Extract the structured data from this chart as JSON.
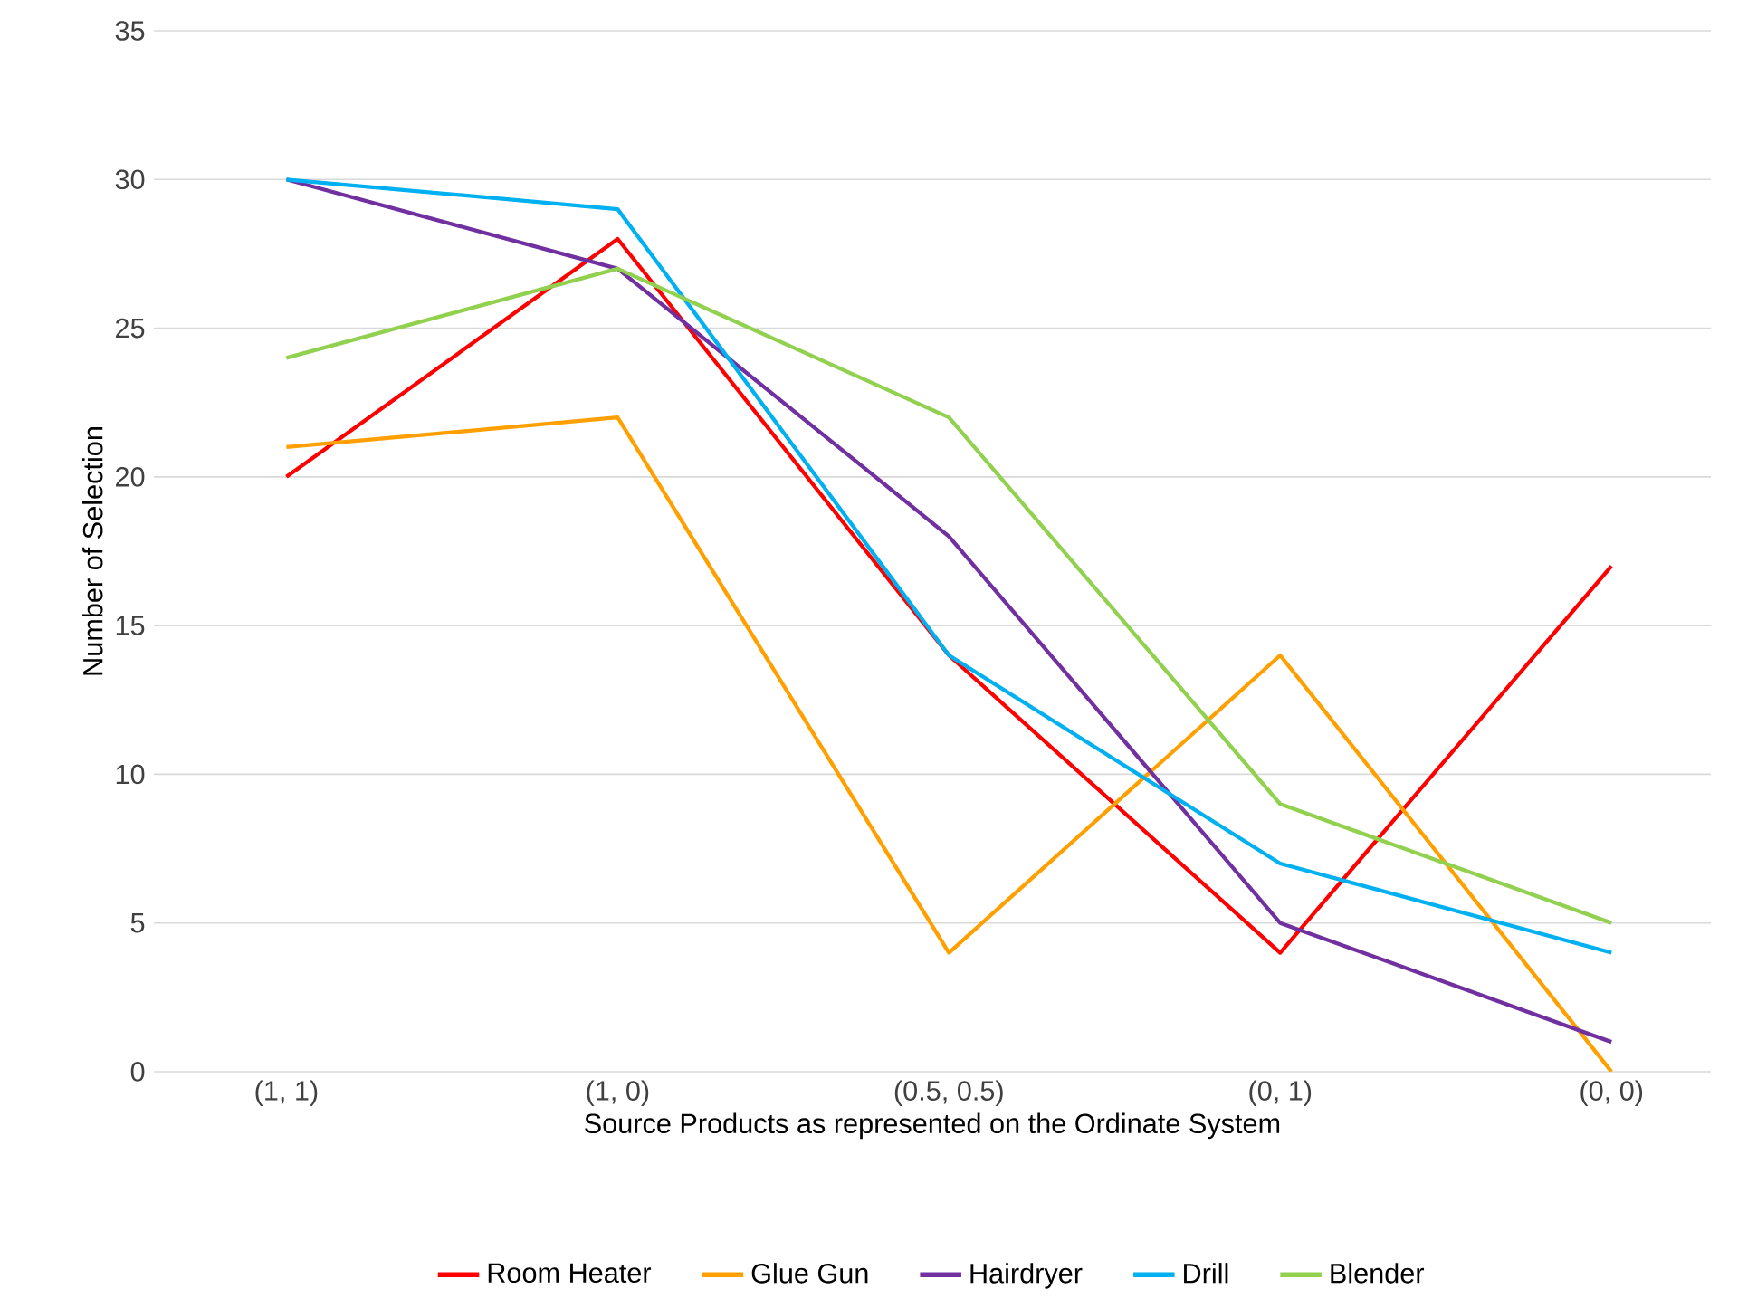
{
  "chart_data": {
    "type": "line",
    "xlabel": "Source Products as represented on the Ordinate System",
    "ylabel": "Number of Selection",
    "categories": [
      "(1, 1)",
      "(1, 0)",
      "(0.5, 0.5)",
      "(0, 1)",
      "(0, 0)"
    ],
    "series": [
      {
        "name": "Room Heater",
        "color": "#ff0000",
        "values": [
          20,
          28,
          14,
          4,
          17
        ]
      },
      {
        "name": "Glue Gun",
        "color": "#ffa000",
        "values": [
          21,
          22,
          4,
          14,
          0
        ]
      },
      {
        "name": "Hairdryer",
        "color": "#7030a0",
        "values": [
          30,
          27,
          18,
          5,
          1
        ]
      },
      {
        "name": "Drill",
        "color": "#00b0f0",
        "values": [
          30,
          29,
          14,
          7,
          4
        ]
      },
      {
        "name": "Blender",
        "color": "#92d050",
        "values": [
          24,
          27,
          22,
          9,
          5
        ]
      }
    ],
    "ylim": [
      0,
      35
    ],
    "yticks": [
      0,
      5,
      10,
      15,
      20,
      25,
      30,
      35
    ],
    "grid": "y",
    "legend": "bottom"
  }
}
